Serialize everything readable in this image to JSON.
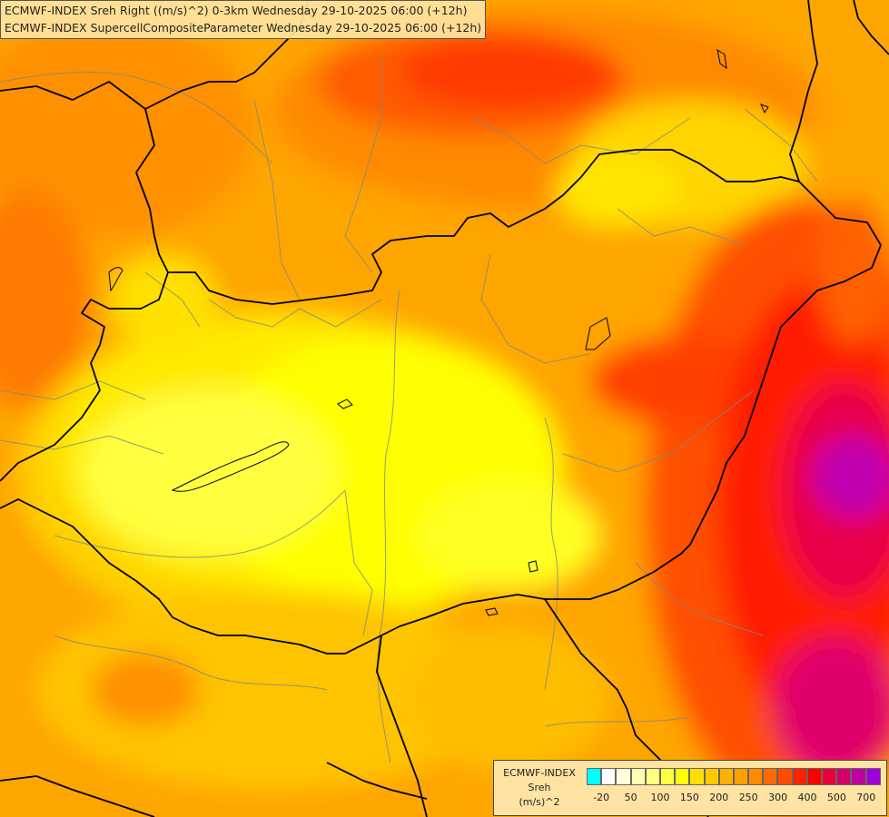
{
  "title": {
    "line1": "ECMWF-INDEX Sreh Right ((m/s)^2) 0-3km Wednesday 29-10-2025 06:00 (+12h)",
    "line2": "ECMWF-INDEX SupercellCompositeParameter Wednesday 29-10-2025 06:00 (+12h)"
  },
  "legend": {
    "model": "ECMWF-INDEX",
    "param": "Sreh",
    "unit": "(m/s)^2",
    "colors": [
      "#00ffff",
      "#ffffff",
      "#ffffd9",
      "#fffdb0",
      "#ffff80",
      "#ffff40",
      "#ffff00",
      "#ffdf00",
      "#ffc800",
      "#ffb000",
      "#ffa000",
      "#ff8c00",
      "#ff6a00",
      "#ff4a00",
      "#ff2000",
      "#ff0000",
      "#e8003a",
      "#d4006a",
      "#c000a0",
      "#a000d8",
      "#7a00e0",
      "#5a00c8",
      "#3a00a8",
      "#1a0088"
    ],
    "ticks": [
      {
        "label": "-20",
        "index": 1
      },
      {
        "label": "50",
        "index": 3
      },
      {
        "label": "100",
        "index": 5
      },
      {
        "label": "150",
        "index": 7
      },
      {
        "label": "200",
        "index": 9
      },
      {
        "label": "250",
        "index": 11
      },
      {
        "label": "300",
        "index": 13
      },
      {
        "label": "400",
        "index": 15
      },
      {
        "label": "500",
        "index": 17
      },
      {
        "label": "700",
        "index": 19
      }
    ]
  }
}
